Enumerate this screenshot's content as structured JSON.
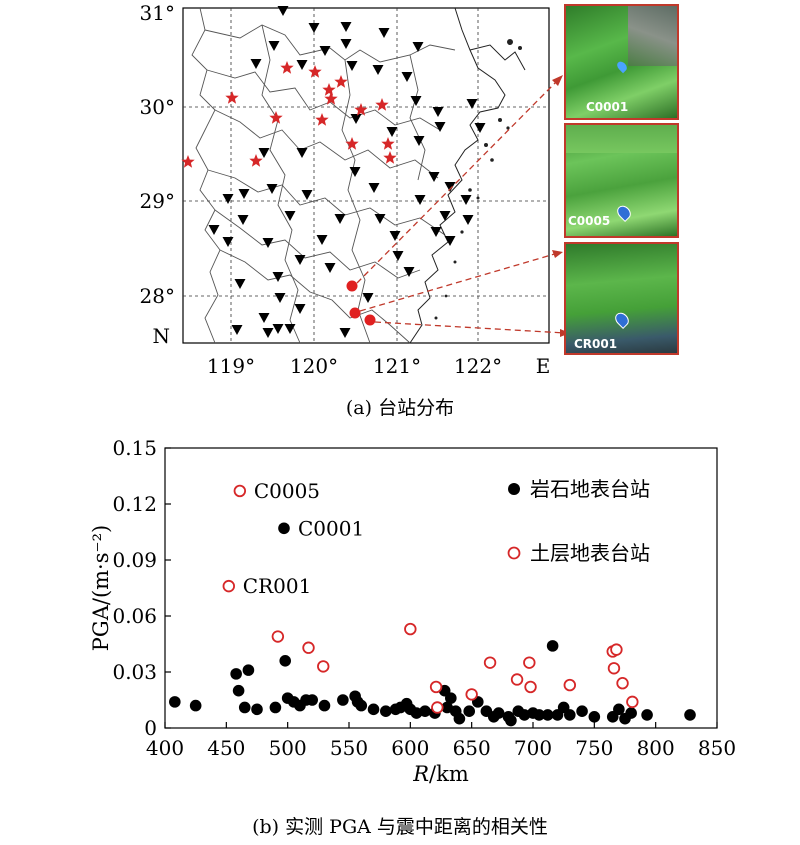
{
  "map": {
    "lat_labels": [
      "31°",
      "30°",
      "29°",
      "28°"
    ],
    "lon_labels": [
      "119°",
      "120°",
      "121°",
      "122°"
    ],
    "corner_lat": "N",
    "corner_lon": "E",
    "caption": "(a) 台站分布",
    "thumbnails": [
      "C0001",
      "C0005",
      "CR001"
    ],
    "colors": {
      "star": "#d62728",
      "triangle": "#000000",
      "highlight": "#e02020",
      "dash": "#c0392b"
    }
  },
  "chart_data": {
    "type": "scatter",
    "xlabel_italic": "R",
    "xlabel_rest": "/km",
    "ylabel": "PGA/(m·s⁻²)",
    "xlim": [
      400,
      850
    ],
    "ylim": [
      0,
      0.15
    ],
    "xticks": [
      400,
      450,
      500,
      550,
      600,
      650,
      700,
      750,
      800,
      850
    ],
    "yticks": [
      0,
      0.03,
      0.06,
      0.09,
      0.12,
      0.15
    ],
    "ytick_labels": [
      "0",
      "0.03",
      "0.06",
      "0.09",
      "0.12",
      "0.15"
    ],
    "legend": {
      "placement": "top-right",
      "rock": "岩石地表台站",
      "soil": "土层地表台站"
    },
    "annotations": [
      {
        "text": "C0005",
        "x": 461,
        "y": 0.127
      },
      {
        "text": "C0001",
        "x": 497,
        "y": 0.107
      },
      {
        "text": "CR001",
        "x": 452,
        "y": 0.076
      }
    ],
    "caption": "(b) 实测 PGA 与震中距离的相关性",
    "series": [
      {
        "name": "岩石地表台站",
        "marker": "filled",
        "color": "#000000",
        "x": [
          408,
          425,
          458,
          460,
          465,
          468,
          475,
          490,
          498,
          500,
          505,
          510,
          515,
          520,
          530,
          545,
          555,
          557,
          560,
          570,
          580,
          588,
          592,
          597,
          600,
          605,
          612,
          620,
          628,
          630,
          633,
          637,
          640,
          648,
          655,
          662,
          668,
          672,
          680,
          682,
          688,
          693,
          700,
          705,
          712,
          716,
          720,
          725,
          730,
          740,
          750,
          765,
          770,
          775,
          780,
          793,
          828,
          497
        ],
        "y": [
          0.014,
          0.012,
          0.029,
          0.02,
          0.011,
          0.031,
          0.01,
          0.011,
          0.036,
          0.016,
          0.014,
          0.012,
          0.015,
          0.015,
          0.012,
          0.015,
          0.017,
          0.014,
          0.012,
          0.01,
          0.009,
          0.01,
          0.011,
          0.013,
          0.01,
          0.008,
          0.009,
          0.008,
          0.02,
          0.011,
          0.016,
          0.009,
          0.005,
          0.009,
          0.014,
          0.009,
          0.006,
          0.008,
          0.006,
          0.004,
          0.009,
          0.007,
          0.008,
          0.007,
          0.007,
          0.044,
          0.007,
          0.011,
          0.007,
          0.009,
          0.006,
          0.006,
          0.01,
          0.005,
          0.008,
          0.007,
          0.007,
          0.107
        ]
      },
      {
        "name": "土层地表台站",
        "marker": "hollow",
        "color": "#d62728",
        "x": [
          461,
          452,
          492,
          517,
          529,
          600,
          621,
          622,
          650,
          665,
          687,
          697,
          698,
          730,
          765,
          766,
          768,
          773,
          781
        ],
        "y": [
          0.127,
          0.076,
          0.049,
          0.043,
          0.033,
          0.053,
          0.022,
          0.011,
          0.018,
          0.035,
          0.026,
          0.035,
          0.022,
          0.023,
          0.041,
          0.032,
          0.042,
          0.024,
          0.014
        ]
      }
    ]
  }
}
